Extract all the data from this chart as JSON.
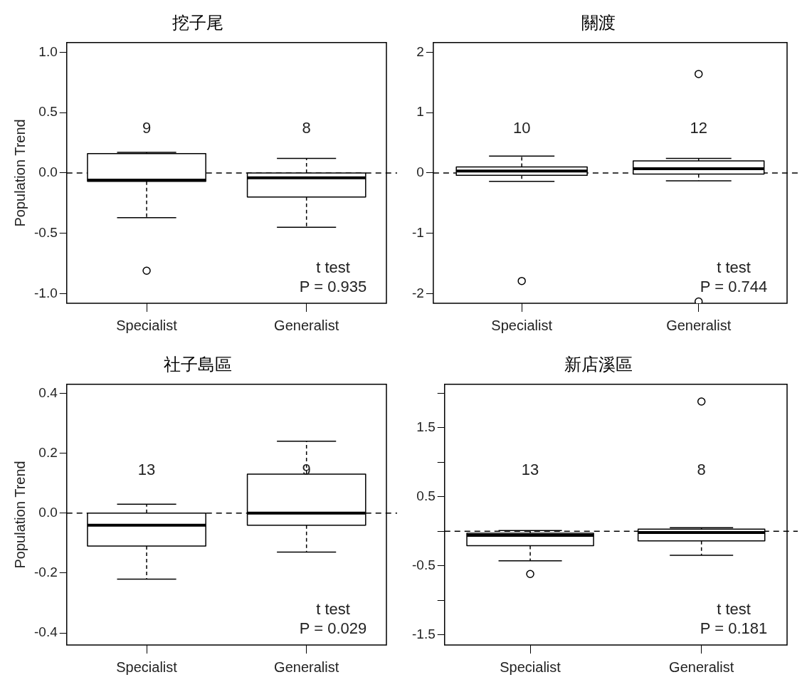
{
  "chart_data": [
    {
      "type": "box",
      "title": "挖子尾",
      "ylabel": "Population Trend",
      "categories": [
        "Specialist",
        "Generalist"
      ],
      "boxes": [
        {
          "low": -0.37,
          "q1": -0.07,
          "median": -0.06,
          "q3": 0.16,
          "high": 0.17,
          "outliers": [
            -0.81
          ]
        },
        {
          "low": -0.45,
          "q1": -0.2,
          "median": -0.04,
          "q3": 0.0,
          "high": 0.12
        }
      ],
      "ylim": [
        -1.08,
        1.08
      ],
      "yticks": [
        {
          "value": -1,
          "label": "-1.0"
        },
        {
          "value": -0.5,
          "label": "-0.5"
        },
        {
          "value": 0,
          "label": "0.0"
        },
        {
          "value": 0.5,
          "label": "0.5"
        },
        {
          "value": 1,
          "label": "1.0"
        }
      ],
      "ref_lines": [
        {
          "axis": "y",
          "value": 0,
          "line_style": "dashed"
        }
      ],
      "annotations": [
        "9",
        "8",
        "t test",
        "P = 0.935"
      ]
    },
    {
      "type": "box",
      "title": "關渡",
      "categories": [
        "Specialist",
        "Generalist"
      ],
      "boxes": [
        {
          "low": -0.14,
          "q1": -0.04,
          "median": 0.03,
          "q3": 0.1,
          "high": 0.28,
          "outliers": [
            -1.79
          ]
        },
        {
          "low": -0.13,
          "q1": -0.02,
          "median": 0.07,
          "q3": 0.2,
          "high": 0.24,
          "outliers": [
            1.64,
            -2.13
          ]
        }
      ],
      "ylim": [
        -2.16,
        2.16
      ],
      "yticks": [
        -2,
        -1,
        0,
        1,
        2
      ],
      "ref_lines": [
        {
          "axis": "y",
          "value": 0,
          "line_style": "dashed"
        }
      ],
      "annotations": [
        "10",
        "12",
        "t test",
        "P = 0.744"
      ]
    },
    {
      "type": "box",
      "title": "社子島區",
      "ylabel": "Population Trend",
      "categories": [
        "Specialist",
        "Generalist"
      ],
      "boxes": [
        {
          "low": -0.22,
          "q1": -0.11,
          "median": -0.04,
          "q3": 0.0,
          "high": 0.03
        },
        {
          "low": -0.13,
          "q1": -0.04,
          "median": 0.0,
          "q3": 0.13,
          "high": 0.24
        }
      ],
      "ylim": [
        -0.44,
        0.43
      ],
      "yticks": [
        {
          "value": -0.4,
          "label": "-0.4"
        },
        {
          "value": -0.2,
          "label": "-0.2"
        },
        {
          "value": 0,
          "label": "0.0"
        },
        0.2,
        0.4
      ],
      "ref_lines": [
        {
          "axis": "y",
          "value": 0,
          "line_style": "dashed"
        }
      ],
      "annotations": [
        "13",
        "9",
        "t test",
        "P = 0.029"
      ]
    },
    {
      "type": "box",
      "title": "新店溪區",
      "categories": [
        "Specialist",
        "Generalist"
      ],
      "boxes": [
        {
          "low": -0.43,
          "q1": -0.21,
          "median": -0.06,
          "q3": -0.03,
          "high": 0.01,
          "outliers": [
            -0.62
          ]
        },
        {
          "low": -0.35,
          "q1": -0.14,
          "median": -0.02,
          "q3": 0.03,
          "high": 0.05,
          "outliers": [
            1.88
          ]
        }
      ],
      "ylim": [
        -1.65,
        2.13
      ],
      "yticks": [
        -1.5,
        {
          "value": -1,
          "label": null
        },
        -0.5,
        {
          "value": 0,
          "label": null
        },
        0.5,
        {
          "value": 1,
          "label": null
        },
        1.5,
        {
          "value": 2,
          "label": null
        }
      ],
      "ref_lines": [
        {
          "axis": "y",
          "value": 0,
          "line_style": "dashed"
        }
      ],
      "annotations": [
        "13",
        "8",
        "t test",
        "P = 0.181"
      ]
    }
  ]
}
